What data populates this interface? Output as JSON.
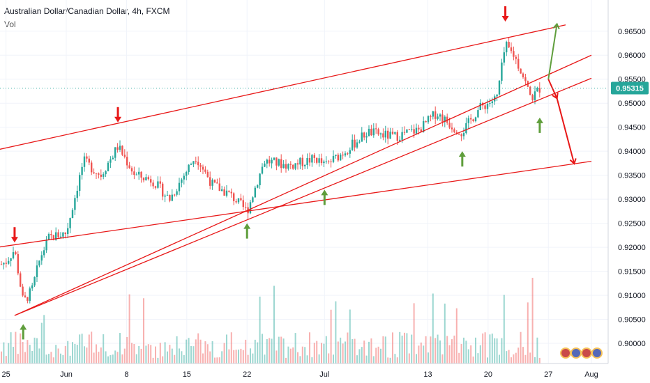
{
  "header": {
    "symbol_line": "Australian Dollar/Canadian Dollar, 4h, FXCM",
    "volume_label": "Vol"
  },
  "chart_data": {
    "type": "candlestick",
    "y_ticks": [
      "0.96500",
      "0.96000",
      "0.95500",
      "0.95000",
      "0.94500",
      "0.94000",
      "0.93500",
      "0.93000",
      "0.92500",
      "0.92000",
      "0.91500",
      "0.91000",
      "0.90500",
      "0.90000"
    ],
    "y_values": [
      0.965,
      0.96,
      0.955,
      0.95,
      0.945,
      0.94,
      0.935,
      0.93,
      0.925,
      0.92,
      0.915,
      0.91,
      0.905,
      0.9
    ],
    "ylim": [
      0.8987,
      0.9683
    ],
    "x_ticks": [
      "25",
      "Jun",
      "8",
      "15",
      "22",
      "Jul",
      "13",
      "20",
      "27",
      "Aug"
    ],
    "current_price": "0.95315",
    "current_price_value": 0.95315,
    "colors": {
      "up": "#26a69a",
      "down": "#ef5350",
      "trendline": "#e81818",
      "arrow_red": "#e81818",
      "arrow_green": "#5f9e3c",
      "price_tag": "#26a69a"
    },
    "trendlines": [
      {
        "name": "upper-channel",
        "p1": {
          "x": "May 24",
          "y": 0.9403
        },
        "p2": {
          "x": "Jul 29",
          "y": 0.9663
        }
      },
      {
        "name": "lower-support",
        "p1": {
          "x": "May 24",
          "y": 0.92
        },
        "p2": {
          "x": "Aug 1",
          "y": 0.9379
        }
      },
      {
        "name": "rising-line-a",
        "p1": {
          "x": "May 26",
          "y": 0.9058
        },
        "p2": {
          "x": "Aug 1",
          "y": 0.96
        }
      },
      {
        "name": "rising-line-b",
        "p1": {
          "x": "May 26",
          "y": 0.9058
        },
        "p2": {
          "x": "Aug 1",
          "y": 0.9552
        }
      }
    ],
    "annotations": [
      {
        "type": "arrow-down",
        "color": "red",
        "x": "May 26",
        "y": 0.921
      },
      {
        "type": "arrow-down",
        "color": "red",
        "x": "Jun 7",
        "y": 0.946
      },
      {
        "type": "arrow-down",
        "color": "red",
        "x": "Jul 22",
        "y": 0.967
      },
      {
        "type": "arrow-up",
        "color": "green",
        "x": "May 27",
        "y": 0.904
      },
      {
        "type": "arrow-up",
        "color": "green",
        "x": "Jun 22",
        "y": 0.925
      },
      {
        "type": "arrow-up",
        "color": "green",
        "x": "Jul 1",
        "y": 0.932
      },
      {
        "type": "arrow-up",
        "color": "green",
        "x": "Jul 17",
        "y": 0.94
      },
      {
        "type": "arrow-up",
        "color": "green",
        "x": "Jul 26",
        "y": 0.947
      },
      {
        "type": "projection",
        "color": "green",
        "from": {
          "x": "Jul 27",
          "y": 0.955
        },
        "to": {
          "x": "Jul 28",
          "y": 0.9665
        }
      },
      {
        "type": "projection",
        "color": "red",
        "from": {
          "x": "Jul 27",
          "y": 0.955
        },
        "to": {
          "x": "Jul 28",
          "y": 0.951
        }
      },
      {
        "type": "projection",
        "color": "red",
        "from": {
          "x": "Jul 28",
          "y": 0.951
        },
        "to": {
          "x": "Jul 30",
          "y": 0.9374
        }
      }
    ],
    "series_path": [
      {
        "x": "May 24",
        "y": 0.916
      },
      {
        "x": "May 25",
        "y": 0.917
      },
      {
        "x": "May 26",
        "y": 0.9195
      },
      {
        "x": "May 27",
        "y": 0.9085
      },
      {
        "x": "May 28",
        "y": 0.911
      },
      {
        "x": "May 29",
        "y": 0.918
      },
      {
        "x": "May 30",
        "y": 0.922
      },
      {
        "x": "Jun 1",
        "y": 0.923
      },
      {
        "x": "Jun 3",
        "y": 0.938
      },
      {
        "x": "Jun 5",
        "y": 0.935
      },
      {
        "x": "Jun 7",
        "y": 0.941
      },
      {
        "x": "Jun 9",
        "y": 0.935
      },
      {
        "x": "Jun 11",
        "y": 0.934
      },
      {
        "x": "Jun 13",
        "y": 0.93
      },
      {
        "x": "Jun 16",
        "y": 0.939
      },
      {
        "x": "Jun 18",
        "y": 0.933
      },
      {
        "x": "Jun 20",
        "y": 0.931
      },
      {
        "x": "Jun 22",
        "y": 0.9275
      },
      {
        "x": "Jun 24",
        "y": 0.938
      },
      {
        "x": "Jun 27",
        "y": 0.937
      },
      {
        "x": "Jun 30",
        "y": 0.9385
      },
      {
        "x": "Jul 1",
        "y": 0.937
      },
      {
        "x": "Jul 3",
        "y": 0.9395
      },
      {
        "x": "Jul 6",
        "y": 0.944
      },
      {
        "x": "Jul 9",
        "y": 0.943
      },
      {
        "x": "Jul 12",
        "y": 0.9445
      },
      {
        "x": "Jul 14",
        "y": 0.948
      },
      {
        "x": "Jul 16",
        "y": 0.945
      },
      {
        "x": "Jul 17",
        "y": 0.944
      },
      {
        "x": "Jul 19",
        "y": 0.949
      },
      {
        "x": "Jul 21",
        "y": 0.951
      },
      {
        "x": "Jul 22",
        "y": 0.962
      },
      {
        "x": "Jul 23",
        "y": 0.96
      },
      {
        "x": "Jul 24",
        "y": 0.956
      },
      {
        "x": "Jul 25",
        "y": 0.951
      },
      {
        "x": "Jul 26",
        "y": 0.9531
      }
    ]
  }
}
